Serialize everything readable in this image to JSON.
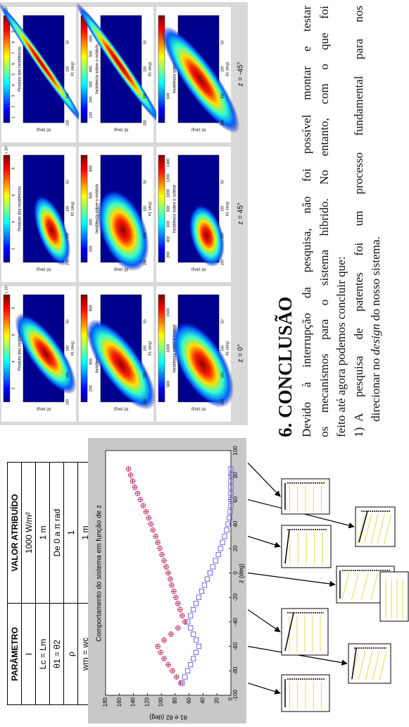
{
  "table": {
    "header": [
      "PARÂMETRO",
      "VALOR ATRIBUÍDO"
    ],
    "rows": [
      [
        "I",
        "1000 W/m²"
      ],
      [
        "Lc = Lm",
        "1 m"
      ],
      [
        "θ1 = θ2",
        "De 0 a π rad"
      ],
      [
        "ρ",
        "1"
      ],
      [
        "wm = wc",
        "1 m"
      ]
    ]
  },
  "chart_data": {
    "type": "scatter",
    "title": "Comportamento do sistema em função de z",
    "x_label": "z (deg)",
    "y_label": "θ1 e θ2 (deg)",
    "x": [
      -90,
      -85,
      -80,
      -75,
      -70,
      -65,
      -60,
      -55,
      -50,
      -45,
      -40,
      -35,
      -30,
      -25,
      -20,
      -15,
      -10,
      -5,
      0,
      5,
      10,
      15,
      20,
      25,
      30,
      35,
      40,
      45,
      50,
      55,
      60,
      65,
      70,
      75,
      80,
      85
    ],
    "series": [
      {
        "color": "#b0309c",
        "marker": "circle-plus",
        "values": [
          72,
          78,
          84,
          90,
          96,
          101,
          105,
          96,
          86,
          76,
          66,
          70,
          73,
          76,
          79,
          82,
          85,
          87,
          90,
          93,
          96,
          99,
          102,
          105,
          108,
          112,
          115,
          118,
          122,
          126,
          130,
          134,
          138,
          141,
          144,
          147
        ]
      },
      {
        "color": "#5a5ad8",
        "marker": "square",
        "values": [
          70,
          66,
          62,
          58,
          54,
          50,
          46,
          50,
          54,
          58,
          62,
          58,
          54,
          50,
          46,
          42,
          38,
          34,
          30,
          26,
          22,
          18,
          15,
          12,
          9,
          6,
          4,
          2,
          1,
          0,
          0,
          0,
          0,
          0,
          0,
          0
        ]
      }
    ],
    "xlim": [
      -100,
      100
    ],
    "xticks": [
      -100,
      -80,
      -60,
      -40,
      -20,
      0,
      20,
      40,
      60,
      80,
      100
    ],
    "ylim": [
      0,
      180
    ],
    "yticks": [
      0,
      20,
      40,
      60,
      80,
      100,
      120,
      140,
      160,
      180
    ]
  },
  "heatmaps": {
    "columns": [
      "z = 0°",
      "z = 45°",
      "z = -45°"
    ],
    "xlabel": "θ1 (deg)",
    "ylabel": "θ2 (deg)",
    "ticks": [
      50,
      100,
      150,
      200
    ],
    "rows": [
      {
        "title": "Produto das incidências",
        "multiplier": "x 10⁴",
        "colorbar_ticks": [
          [
            8,
            6,
            4,
            2
          ],
          [
            8,
            6,
            4,
            2
          ],
          [
            10,
            9,
            8,
            7,
            6,
            5,
            4,
            3,
            2,
            1
          ]
        ]
      },
      {
        "title": "Incidência sobre o módulo",
        "colorbar_ticks": [
          [
            800,
            600,
            400,
            200
          ],
          [
            800,
            600,
            400,
            200
          ],
          [
            700,
            600,
            500,
            400,
            300,
            200,
            100
          ]
        ]
      },
      {
        "title": "Incidência sobre o coletor",
        "colorbar_ticks": [
          [
            1500,
            1000,
            500
          ],
          [
            1400,
            1200,
            1000,
            800,
            600,
            400,
            200
          ],
          [
            1000,
            500
          ]
        ]
      }
    ]
  },
  "conclusion": {
    "heading": "6. CONCLUSÃO",
    "paragraph": [
      "Devido à interrupção da pesquisa, não foi possível montar e testar",
      "os mecanismos para o sistema híbrido. No entanto, com o que foi",
      "feito até agora podemos concluir que:"
    ],
    "item": {
      "marker": "1)",
      "line": "A pesquisa de patentes foi um processo fundamental para nos",
      "continuation": [
        "direcionar no",
        "design",
        "do nosso sistema."
      ]
    }
  }
}
